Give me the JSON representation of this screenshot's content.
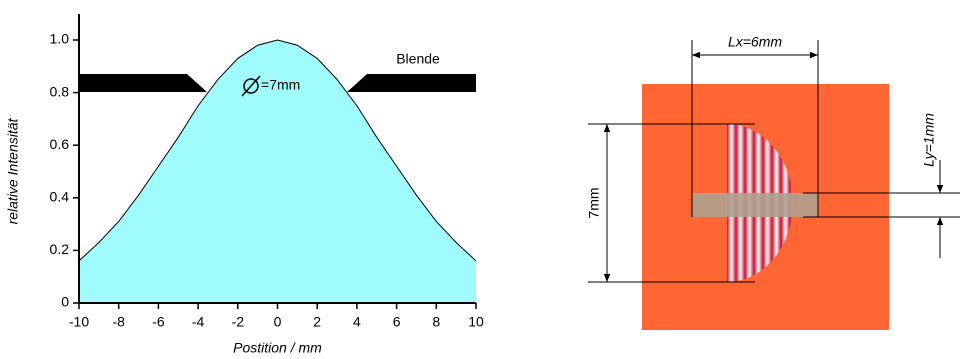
{
  "chart_data": {
    "type": "area",
    "x": [
      -10,
      -9,
      -8,
      -7,
      -6,
      -5,
      -4,
      -3,
      -2,
      -1,
      0,
      1,
      2,
      3,
      4,
      5,
      6,
      7,
      8,
      9,
      10
    ],
    "values": [
      0.16,
      0.23,
      0.31,
      0.41,
      0.52,
      0.63,
      0.75,
      0.85,
      0.93,
      0.98,
      1.0,
      0.98,
      0.93,
      0.85,
      0.75,
      0.63,
      0.52,
      0.41,
      0.31,
      0.23,
      0.16
    ],
    "color": "#a0fcfc",
    "xlim": [
      -10,
      10
    ],
    "xticks": [
      -10,
      -8,
      -6,
      -4,
      -2,
      0,
      2,
      4,
      6,
      8,
      10
    ],
    "ylim": [
      0,
      1.0
    ],
    "yticks": [
      0,
      0.2,
      0.4,
      0.6,
      0.8,
      {
        "value": 1.0,
        "label": "1.0"
      }
    ],
    "x_label": "Postition / mm",
    "y_label": "relative Intensität",
    "annotations": [
      "Blende",
      "=7mm"
    ]
  },
  "diagram": {
    "lx_label": "Lx=6mm",
    "height_label": "7mm",
    "ly_label": "Ly=1mm"
  }
}
